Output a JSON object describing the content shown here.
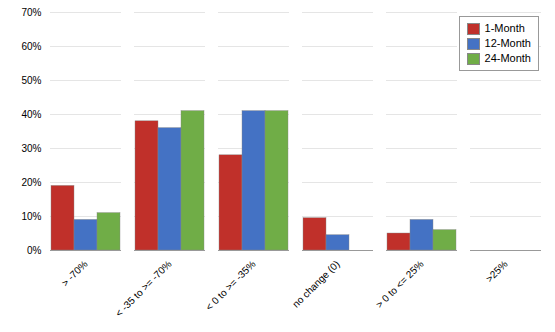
{
  "chart_data": {
    "type": "bar",
    "categories": [
      "> -70%",
      "< -35 to >= -70%",
      "< 0 to >= -35%",
      "no change (0)",
      "> 0 to <= 25%",
      ">25%"
    ],
    "series": [
      {
        "name": "1-Month",
        "color": "#C0302A",
        "values": [
          19,
          38,
          28,
          9.5,
          5,
          0
        ]
      },
      {
        "name": "12-Month",
        "color": "#4472C4",
        "values": [
          9,
          36,
          41,
          4.5,
          9,
          0
        ]
      },
      {
        "name": "24-Month",
        "color": "#70AD47",
        "values": [
          11,
          41,
          41,
          0,
          6,
          0
        ]
      }
    ],
    "ylim": [
      0,
      70
    ],
    "yticks": [
      {
        "value": 0,
        "label": "0%"
      },
      {
        "value": 10,
        "label": "10%"
      },
      {
        "value": 20,
        "label": "20%"
      },
      {
        "value": 30,
        "label": "30%"
      },
      {
        "value": 40,
        "label": "40%"
      },
      {
        "value": 50,
        "label": "50%"
      },
      {
        "value": 60,
        "label": "60%"
      },
      {
        "value": 70,
        "label": "70%"
      }
    ],
    "grid": true,
    "legend": "upper right"
  }
}
